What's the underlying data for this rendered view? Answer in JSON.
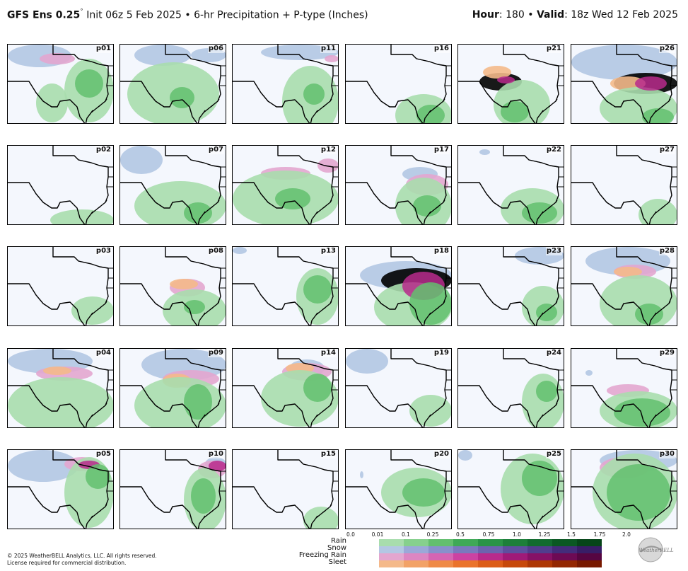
{
  "header": {
    "model": "GFS Ens 0.25",
    "degree": "˚",
    "init": " Init 06z 5 Feb 2025",
    "sep1": " • ",
    "product": "6-hr Precipitation + P-type (Inches)",
    "hour_label": "Hour",
    "hour_value": ": 180",
    "sep2": " • ",
    "valid_label": "Valid",
    "valid_value": ": 18z Wed 12 Feb 2025"
  },
  "panels": [
    {
      "label": "p01",
      "cover": [
        [
          "s",
          0,
          0,
          90,
          32
        ],
        [
          "f",
          45,
          12,
          50,
          16
        ],
        [
          "r",
          80,
          20,
          70,
          90
        ],
        [
          "r",
          40,
          55,
          45,
          55
        ]
      ],
      "heavy": [
        [
          "r",
          95,
          35,
          40,
          40
        ]
      ]
    },
    {
      "label": "p06",
      "cover": [
        [
          "s",
          20,
          0,
          80,
          30
        ],
        [
          "r",
          10,
          25,
          130,
          90
        ],
        [
          "s",
          100,
          5,
          50,
          20
        ]
      ],
      "heavy": [
        [
          "r",
          70,
          60,
          35,
          30
        ]
      ]
    },
    {
      "label": "p11",
      "cover": [
        [
          "s",
          40,
          0,
          110,
          22
        ],
        [
          "f",
          130,
          15,
          20,
          10
        ],
        [
          "r",
          70,
          30,
          80,
          100
        ]
      ],
      "heavy": [
        [
          "r",
          100,
          55,
          30,
          30
        ]
      ]
    },
    {
      "label": "p16",
      "cover": [
        [
          "r",
          70,
          70,
          80,
          60
        ]
      ],
      "heavy": [
        [
          "r",
          100,
          85,
          40,
          30
        ]
      ]
    },
    {
      "label": "p21",
      "cover": [
        [
          "p",
          30,
          40,
          60,
          25
        ],
        [
          "o",
          35,
          30,
          40,
          18
        ],
        [
          "r",
          50,
          50,
          80,
          70
        ]
      ],
      "heavy": [
        [
          "r",
          60,
          80,
          40,
          30
        ],
        [
          "m",
          55,
          45,
          25,
          10
        ]
      ]
    },
    {
      "label": "p26",
      "cover": [
        [
          "s",
          0,
          0,
          150,
          50
        ],
        [
          "p",
          60,
          40,
          90,
          30
        ],
        [
          "o",
          55,
          45,
          50,
          20
        ],
        [
          "r",
          40,
          60,
          110,
          60
        ]
      ],
      "heavy": [
        [
          "m",
          90,
          45,
          45,
          20
        ],
        [
          "r",
          100,
          90,
          45,
          25
        ]
      ]
    },
    {
      "label": "p02",
      "cover": [
        [
          "r",
          60,
          90,
          90,
          30
        ]
      ],
      "heavy": []
    },
    {
      "label": "p07",
      "cover": [
        [
          "s",
          0,
          0,
          60,
          40
        ],
        [
          "r",
          20,
          50,
          130,
          70
        ]
      ],
      "heavy": [
        [
          "r",
          90,
          80,
          40,
          30
        ]
      ]
    },
    {
      "label": "p12",
      "cover": [
        [
          "f",
          40,
          30,
          70,
          18
        ],
        [
          "f",
          120,
          18,
          30,
          20
        ],
        [
          "r",
          0,
          35,
          150,
          80
        ]
      ],
      "heavy": [
        [
          "r",
          60,
          60,
          50,
          30
        ]
      ]
    },
    {
      "label": "p17",
      "cover": [
        [
          "s",
          80,
          30,
          50,
          20
        ],
        [
          "f",
          85,
          40,
          60,
          30
        ],
        [
          "r",
          70,
          45,
          80,
          80
        ]
      ],
      "heavy": [
        [
          "r",
          95,
          70,
          40,
          30
        ]
      ]
    },
    {
      "label": "p22",
      "cover": [
        [
          "s",
          30,
          5,
          15,
          8
        ],
        [
          "r",
          60,
          60,
          90,
          60
        ]
      ],
      "heavy": [
        [
          "r",
          90,
          80,
          50,
          30
        ]
      ]
    },
    {
      "label": "p27",
      "cover": [
        [
          "r",
          95,
          75,
          55,
          45
        ]
      ],
      "heavy": []
    },
    {
      "label": "p03",
      "cover": [
        [
          "r",
          90,
          70,
          60,
          40
        ]
      ],
      "heavy": []
    },
    {
      "label": "p08",
      "cover": [
        [
          "f",
          70,
          45,
          50,
          25
        ],
        [
          "o",
          70,
          45,
          40,
          15
        ],
        [
          "r",
          60,
          60,
          90,
          60
        ]
      ],
      "heavy": [
        [
          "r",
          90,
          75,
          30,
          20
        ]
      ]
    },
    {
      "label": "p13",
      "cover": [
        [
          "s",
          0,
          0,
          20,
          10
        ],
        [
          "r",
          90,
          30,
          60,
          80
        ]
      ],
      "heavy": [
        [
          "r",
          100,
          40,
          40,
          40
        ]
      ]
    },
    {
      "label": "p18",
      "cover": [
        [
          "s",
          20,
          20,
          130,
          40
        ],
        [
          "p",
          50,
          30,
          100,
          35
        ],
        [
          "r",
          40,
          50,
          110,
          70
        ]
      ],
      "heavy": [
        [
          "m",
          80,
          35,
          60,
          40
        ],
        [
          "r",
          90,
          50,
          60,
          60
        ]
      ]
    },
    {
      "label": "p23",
      "cover": [
        [
          "s",
          80,
          0,
          70,
          25
        ],
        [
          "r",
          90,
          55,
          60,
          60
        ]
      ],
      "heavy": [
        [
          "r",
          110,
          80,
          30,
          25
        ]
      ]
    },
    {
      "label": "p28",
      "cover": [
        [
          "s",
          20,
          0,
          120,
          40
        ],
        [
          "f",
          60,
          25,
          60,
          20
        ],
        [
          "o",
          60,
          28,
          40,
          14
        ],
        [
          "r",
          40,
          40,
          110,
          80
        ]
      ],
      "heavy": [
        [
          "r",
          90,
          80,
          40,
          30
        ]
      ]
    },
    {
      "label": "p04",
      "cover": [
        [
          "s",
          0,
          0,
          120,
          35
        ],
        [
          "f",
          40,
          25,
          80,
          20
        ],
        [
          "o",
          50,
          25,
          40,
          12
        ],
        [
          "r",
          0,
          40,
          150,
          80
        ]
      ],
      "heavy": []
    },
    {
      "label": "p09",
      "cover": [
        [
          "s",
          30,
          0,
          120,
          45
        ],
        [
          "f",
          60,
          30,
          80,
          25
        ],
        [
          "o",
          60,
          35,
          40,
          20
        ],
        [
          "r",
          20,
          40,
          130,
          80
        ]
      ],
      "heavy": [
        [
          "r",
          90,
          50,
          40,
          50
        ]
      ]
    },
    {
      "label": "p14",
      "cover": [
        [
          "s",
          80,
          15,
          50,
          25
        ],
        [
          "f",
          70,
          20,
          70,
          25
        ],
        [
          "o",
          75,
          20,
          40,
          15
        ],
        [
          "r",
          40,
          30,
          110,
          80
        ]
      ],
      "heavy": [
        [
          "r",
          100,
          35,
          40,
          40
        ]
      ]
    },
    {
      "label": "p19",
      "cover": [
        [
          "s",
          0,
          0,
          60,
          35
        ],
        [
          "r",
          90,
          65,
          60,
          45
        ]
      ],
      "heavy": []
    },
    {
      "label": "p24",
      "cover": [
        [
          "r",
          90,
          35,
          60,
          80
        ]
      ],
      "heavy": [
        [
          "r",
          110,
          45,
          30,
          30
        ]
      ]
    },
    {
      "label": "p29",
      "cover": [
        [
          "s",
          20,
          30,
          10,
          8
        ],
        [
          "f",
          50,
          50,
          60,
          18
        ],
        [
          "r",
          40,
          60,
          110,
          55
        ]
      ],
      "heavy": [
        [
          "r",
          60,
          70,
          80,
          40
        ]
      ]
    },
    {
      "label": "p05",
      "cover": [
        [
          "s",
          0,
          0,
          100,
          45
        ],
        [
          "f",
          80,
          10,
          50,
          20
        ],
        [
          "r",
          80,
          10,
          70,
          100
        ]
      ],
      "heavy": [
        [
          "m",
          100,
          15,
          30,
          12
        ],
        [
          "r",
          110,
          20,
          35,
          35
        ]
      ]
    },
    {
      "label": "p10",
      "cover": [
        [
          "s",
          120,
          10,
          30,
          20
        ],
        [
          "f",
          110,
          15,
          40,
          25
        ],
        [
          "r",
          90,
          25,
          60,
          90
        ]
      ],
      "heavy": [
        [
          "m",
          125,
          15,
          25,
          15
        ],
        [
          "r",
          100,
          40,
          35,
          50
        ]
      ]
    },
    {
      "label": "p15",
      "cover": [
        [
          "r",
          100,
          80,
          50,
          40
        ]
      ],
      "heavy": []
    },
    {
      "label": "p20",
      "cover": [
        [
          "r",
          50,
          25,
          100,
          70
        ],
        [
          "s",
          20,
          30,
          5,
          10
        ]
      ],
      "heavy": [
        [
          "r",
          80,
          40,
          60,
          40
        ]
      ]
    },
    {
      "label": "p25",
      "cover": [
        [
          "s",
          0,
          0,
          20,
          15
        ],
        [
          "r",
          60,
          5,
          90,
          100
        ]
      ],
      "heavy": [
        [
          "r",
          90,
          15,
          50,
          50
        ]
      ]
    },
    {
      "label": "p30",
      "cover": [
        [
          "s",
          40,
          0,
          110,
          30
        ],
        [
          "f",
          40,
          10,
          70,
          30
        ],
        [
          "r",
          30,
          5,
          120,
          110
        ]
      ],
      "heavy": [
        [
          "r",
          50,
          20,
          90,
          80
        ]
      ]
    }
  ],
  "legend": {
    "ticks": [
      "0.0",
      "0.01",
      "0.1",
      "0.25",
      "0.5",
      "0.75",
      "1.0",
      "1.25",
      "1.5",
      "1.75",
      "2.0"
    ],
    "rows": [
      {
        "name": "Rain",
        "colors": [
          "#a8ddad",
          "#86d08d",
          "#63bf6e",
          "#3fa957",
          "#2a9447",
          "#1d7f3a",
          "#126b2f",
          "#0b5823",
          "#064519"
        ]
      },
      {
        "name": "Snow",
        "colors": [
          "#b3c7e3",
          "#9ba8d8",
          "#8890cb",
          "#7a79bd",
          "#6c63ae",
          "#5e4f9e",
          "#513d8d",
          "#442c7b",
          "#381d67"
        ]
      },
      {
        "name": "Freezing Rain",
        "colors": [
          "#e3a6cf",
          "#dc86c2",
          "#d564b3",
          "#cc42a2",
          "#b82a8c",
          "#a01a78",
          "#861166",
          "#6d0a54",
          "#560542"
        ]
      },
      {
        "name": "Sleet",
        "colors": [
          "#f4b98a",
          "#f2a267",
          "#ef8a47",
          "#ea732c",
          "#dc5d18",
          "#c7490b",
          "#ae3705",
          "#932702",
          "#781900"
        ]
      }
    ]
  },
  "footer": {
    "copyright": "© 2025 WeatherBELL Analytics, LLC. All rights reserved.",
    "license": "License required for commercial distribution.",
    "logo_text": "WeatherBELL"
  },
  "colors": {
    "rain": "#a8ddad",
    "rain_heavy": "#63bf6e",
    "snow": "#b3c7e3",
    "freezing_rain": "#e3a6cf",
    "freezing_heavy": "#cc42a2",
    "sleet": "#f4b98a",
    "map_bg": "#f4f7fd"
  }
}
